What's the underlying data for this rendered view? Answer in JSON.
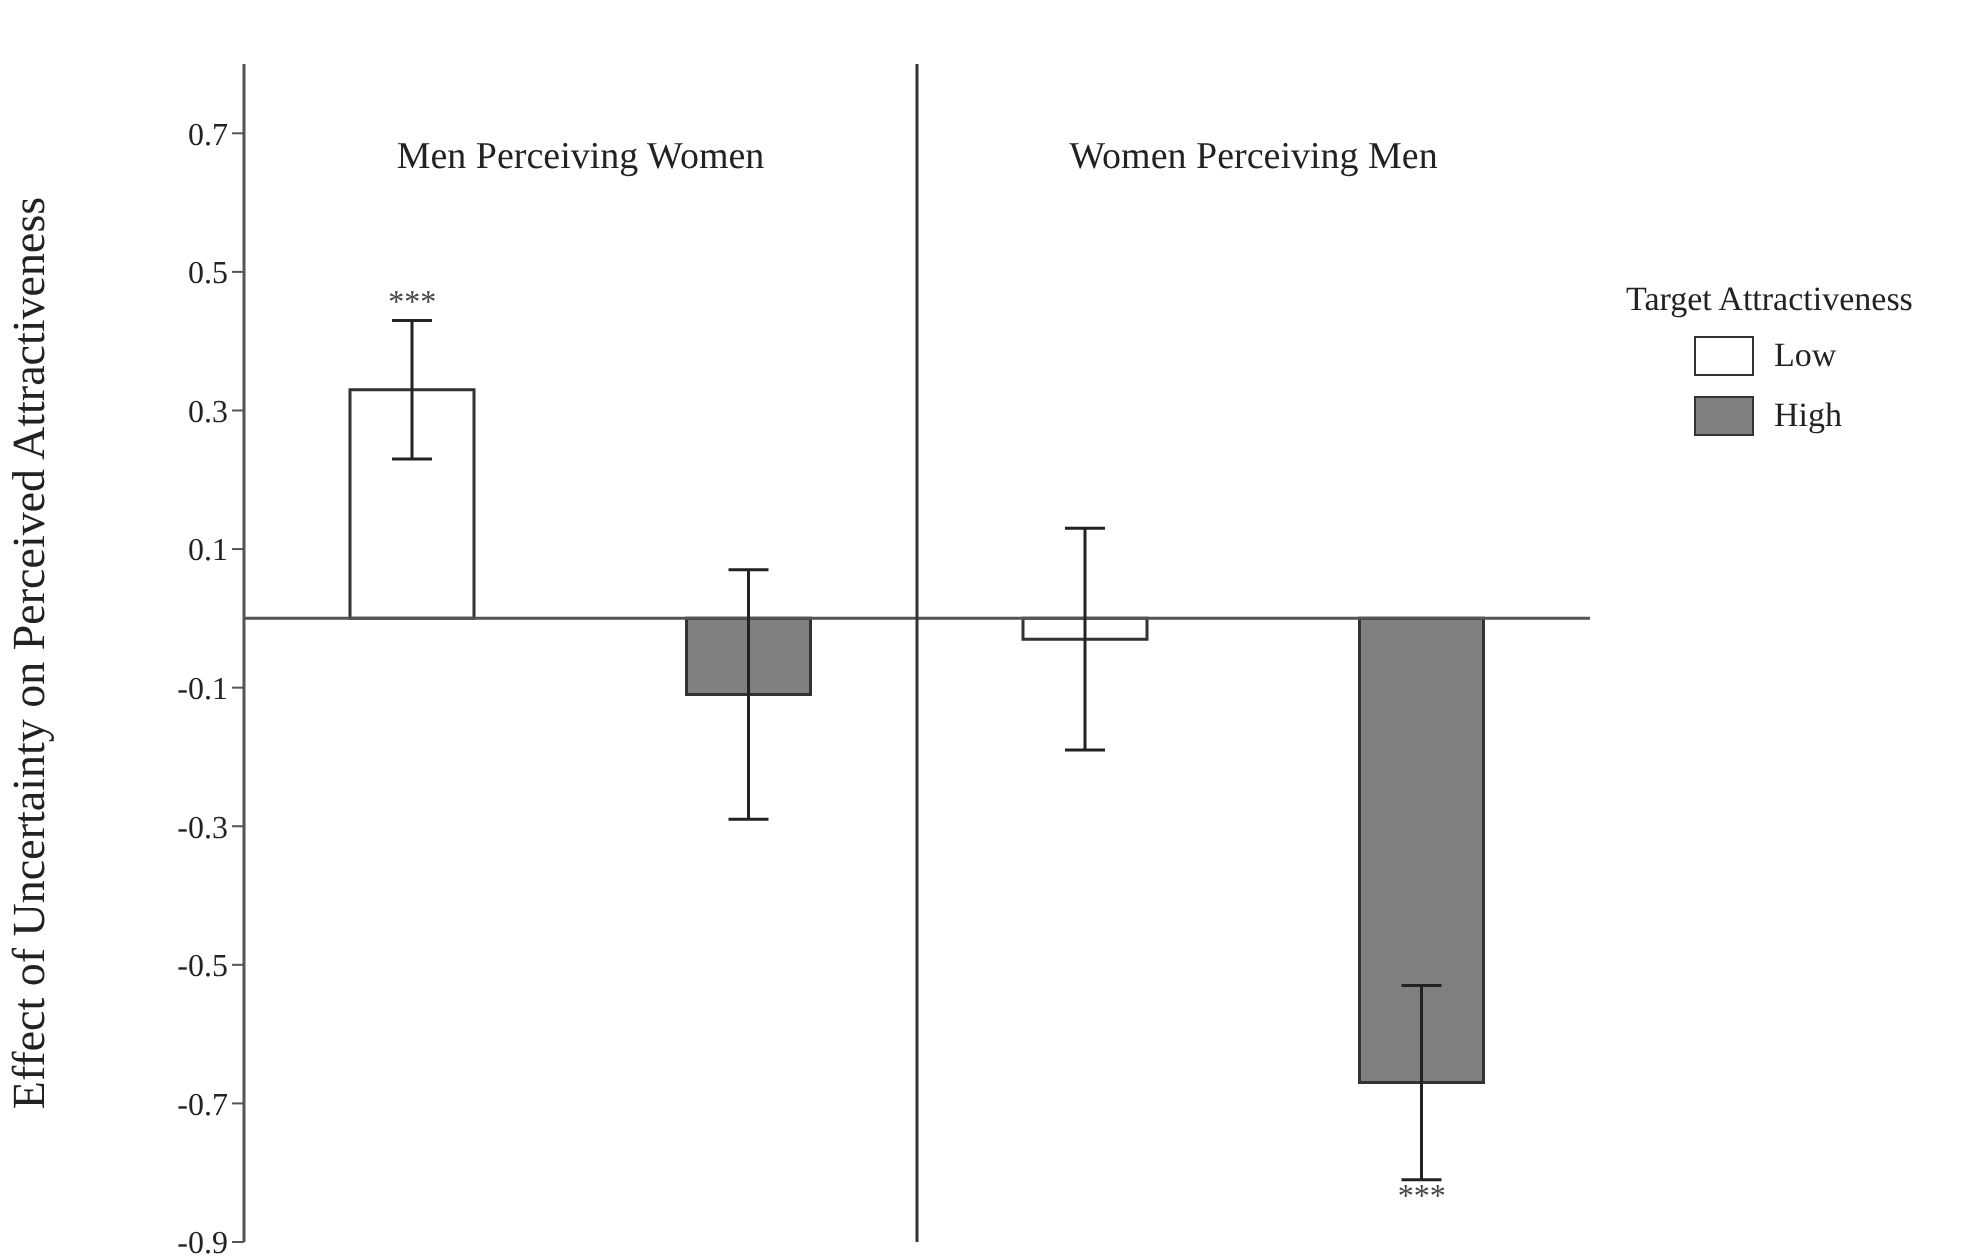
{
  "chart_data": {
    "type": "bar",
    "ylabel": "Effect of Uncertainty on Perceived Attractiveness",
    "legend_title": "Target Attractiveness",
    "categories": [
      null,
      null,
      null,
      null
    ],
    "series": [
      {
        "name": "Low",
        "color": "#ffffff",
        "values": [
          0.33,
          null,
          -0.03,
          null
        ],
        "errors": [
          0.1,
          null,
          0.16,
          null
        ],
        "value_labels": [
          "***",
          null,
          null,
          null
        ]
      },
      {
        "name": "High",
        "color": "#808080",
        "values": [
          null,
          -0.11,
          null,
          -0.67
        ],
        "errors": [
          null,
          0.18,
          null,
          0.14
        ],
        "value_labels": [
          null,
          null,
          null,
          "***"
        ]
      }
    ],
    "ylim": [
      -0.9,
      0.8
    ],
    "yticks": [
      0.7,
      0.5,
      0.3,
      0.1,
      -0.1,
      -0.3,
      -0.5,
      -0.7,
      -0.9
    ],
    "ref_lines": [
      {
        "axis": "y",
        "value": 0
      }
    ],
    "annotations": [
      "Men Perceiving Women",
      "Women Perceiving Men"
    ],
    "legend": "right",
    "grid": false
  }
}
